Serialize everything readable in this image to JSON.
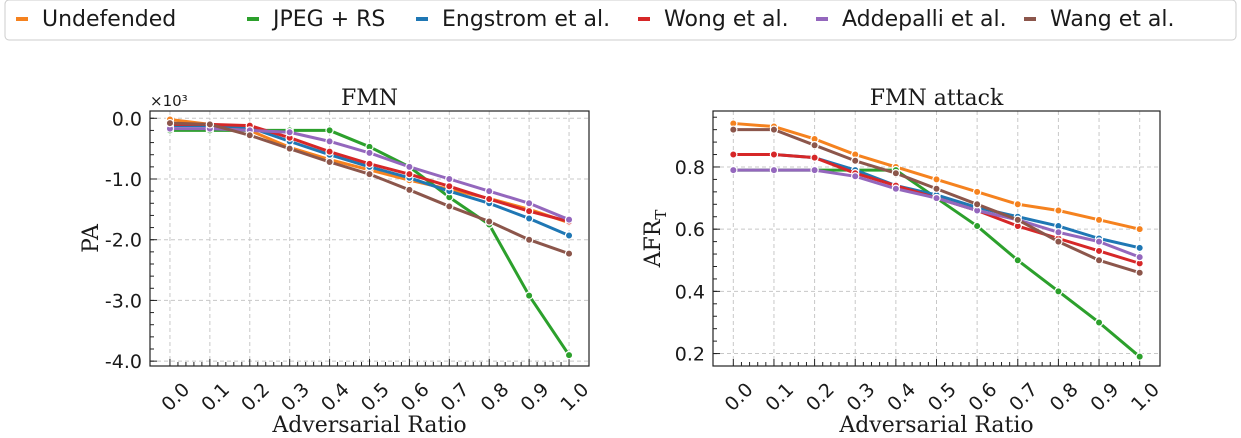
{
  "legend": {
    "entries": [
      {
        "name": "Undefended",
        "color": "#f5821f"
      },
      {
        "name": "JPEG + RS",
        "color": "#2ca02c"
      },
      {
        "name": "Engstrom et al.",
        "color": "#1f77b4"
      },
      {
        "name": "Wong et al.",
        "color": "#d62728"
      },
      {
        "name": "Addepalli et al.",
        "color": "#9467bd"
      },
      {
        "name": "Wang et al.",
        "color": "#8c564b"
      }
    ]
  },
  "chart_data": [
    {
      "type": "line",
      "title": "FMN",
      "xlabel": "Adversarial Ratio",
      "ylabel": "PA",
      "y_multiplier_label": "×10³",
      "x": [
        0.0,
        0.1,
        0.2,
        0.3,
        0.4,
        0.5,
        0.6,
        0.7,
        0.8,
        0.9,
        1.0
      ],
      "x_tick_labels": [
        "0.0",
        "0.1",
        "0.2",
        "0.3",
        "0.4",
        "0.5",
        "0.6",
        "0.7",
        "0.8",
        "0.9",
        "1.0"
      ],
      "y_ticks": [
        0.0,
        -1.0,
        -2.0,
        -3.0,
        -4.0
      ],
      "y_tick_labels": [
        "0.0",
        "-1.0",
        "-2.0",
        "-3.0",
        "-4.0"
      ],
      "xlim": [
        -0.05,
        1.05
      ],
      "ylim": [
        -4.08,
        0.12
      ],
      "grid": true,
      "series": [
        {
          "name": "Undefended",
          "values": [
            -0.02,
            -0.1,
            -0.2,
            -0.48,
            -0.68,
            -0.85,
            -1.02,
            -1.17,
            -1.32,
            -1.5,
            -1.72
          ]
        },
        {
          "name": "JPEG + RS",
          "values": [
            -0.2,
            -0.2,
            -0.2,
            -0.2,
            -0.2,
            -0.47,
            -0.8,
            -1.3,
            -1.75,
            -2.92,
            -3.9
          ]
        },
        {
          "name": "Engstrom et al.",
          "values": [
            -0.12,
            -0.12,
            -0.15,
            -0.38,
            -0.6,
            -0.8,
            -0.98,
            -1.2,
            -1.4,
            -1.65,
            -1.93
          ]
        },
        {
          "name": "Wong et al.",
          "values": [
            -0.1,
            -0.1,
            -0.12,
            -0.32,
            -0.55,
            -0.75,
            -0.92,
            -1.12,
            -1.33,
            -1.53,
            -1.7
          ]
        },
        {
          "name": "Addepalli et al.",
          "values": [
            -0.17,
            -0.17,
            -0.2,
            -0.23,
            -0.38,
            -0.57,
            -0.8,
            -1.0,
            -1.2,
            -1.4,
            -1.67
          ]
        },
        {
          "name": "Wang et al.",
          "values": [
            -0.08,
            -0.1,
            -0.28,
            -0.5,
            -0.72,
            -0.92,
            -1.18,
            -1.45,
            -1.7,
            -2.0,
            -2.23
          ]
        }
      ]
    },
    {
      "type": "line",
      "title": "FMN attack",
      "xlabel": "Adversarial Ratio",
      "ylabel": "AFR",
      "ylabel_subscript": "T",
      "x": [
        0.0,
        0.1,
        0.2,
        0.3,
        0.4,
        0.5,
        0.6,
        0.7,
        0.8,
        0.9,
        1.0
      ],
      "x_tick_labels": [
        "0.0",
        "0.1",
        "0.2",
        "0.3",
        "0.4",
        "0.5",
        "0.6",
        "0.7",
        "0.8",
        "0.9",
        "1.0"
      ],
      "y_ticks": [
        0.2,
        0.4,
        0.6,
        0.8
      ],
      "y_tick_labels": [
        "0.2",
        "0.4",
        "0.6",
        "0.8"
      ],
      "xlim": [
        -0.05,
        1.05
      ],
      "ylim": [
        0.16,
        0.98
      ],
      "grid": true,
      "series": [
        {
          "name": "Undefended",
          "values": [
            0.94,
            0.93,
            0.89,
            0.84,
            0.8,
            0.76,
            0.72,
            0.68,
            0.66,
            0.63,
            0.6
          ]
        },
        {
          "name": "JPEG + RS",
          "values": [
            0.79,
            0.79,
            0.79,
            0.79,
            0.79,
            0.7,
            0.61,
            0.5,
            0.4,
            0.3,
            0.19
          ]
        },
        {
          "name": "Engstrom et al.",
          "values": [
            0.84,
            0.84,
            0.83,
            0.79,
            0.74,
            0.71,
            0.67,
            0.64,
            0.61,
            0.57,
            0.54
          ]
        },
        {
          "name": "Wong et al.",
          "values": [
            0.84,
            0.84,
            0.83,
            0.78,
            0.74,
            0.7,
            0.66,
            0.61,
            0.57,
            0.53,
            0.49
          ]
        },
        {
          "name": "Addepalli et al.",
          "values": [
            0.79,
            0.79,
            0.79,
            0.77,
            0.73,
            0.7,
            0.66,
            0.63,
            0.59,
            0.56,
            0.51
          ]
        },
        {
          "name": "Wang et al.",
          "values": [
            0.92,
            0.92,
            0.87,
            0.82,
            0.78,
            0.73,
            0.68,
            0.63,
            0.56,
            0.5,
            0.46
          ]
        }
      ]
    }
  ]
}
